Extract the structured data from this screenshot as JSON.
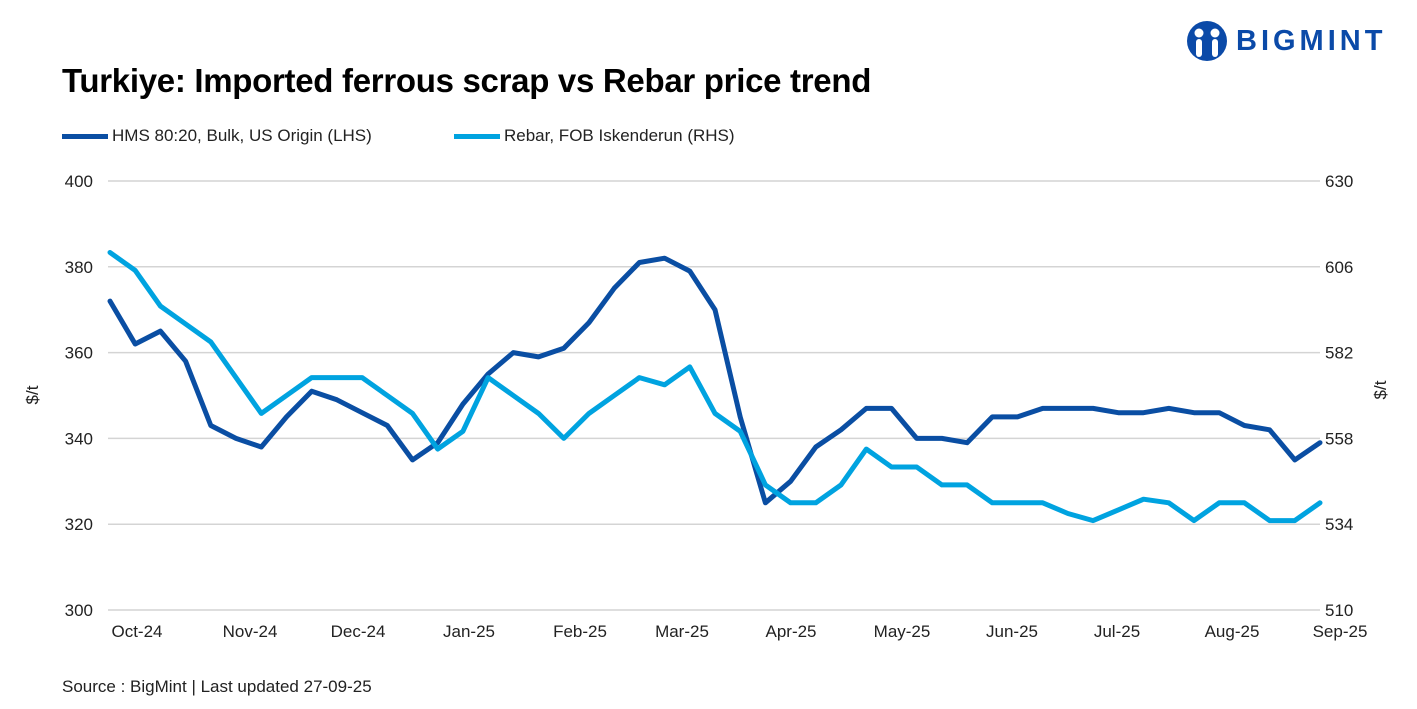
{
  "brand": {
    "logo_text": "BIGMINT",
    "color": "#0b4aa8"
  },
  "chart_data": {
    "type": "line",
    "title": "Turkiye: Imported ferrous scrap vs Rebar price trend",
    "source": "Source : BigMint | Last updated 27-09-25",
    "xlabel": "",
    "x_ticks": [
      "Oct-24",
      "Nov-24",
      "Dec-24",
      "Jan-25",
      "Feb-25",
      "Mar-25",
      "Apr-25",
      "May-25",
      "Jun-25",
      "Jul-25",
      "Aug-25",
      "Sep-25"
    ],
    "y_left": {
      "label": "$/t",
      "lim": [
        300,
        400
      ],
      "ticks": [
        "300",
        "320",
        "340",
        "360",
        "380",
        "400"
      ]
    },
    "y_right": {
      "label": "$/t",
      "lim": [
        510,
        630
      ],
      "ticks": [
        "510",
        "534",
        "558",
        "582",
        "606",
        "630"
      ]
    },
    "grid": true,
    "legend_placement": "top-left",
    "series": [
      {
        "name": "HMS 80:20, Bulk, US Origin (LHS)",
        "axis": "left",
        "color": "#0a4ea3",
        "values": [
          372,
          362,
          365,
          358,
          343,
          340,
          338,
          345,
          351,
          349,
          346,
          343,
          335,
          339,
          348,
          355,
          360,
          359,
          361,
          367,
          375,
          381,
          382,
          379,
          370,
          345,
          325,
          330,
          338,
          342,
          347,
          347,
          340,
          340,
          339,
          345,
          345,
          347,
          347,
          347,
          346,
          346,
          347,
          346,
          346,
          343,
          342,
          335,
          339
        ]
      },
      {
        "name": "Rebar, FOB Iskenderun (RHS)",
        "axis": "right",
        "color": "#00a3e0",
        "values": [
          610,
          605,
          595,
          590,
          585,
          575,
          565,
          570,
          575,
          575,
          575,
          570,
          565,
          555,
          560,
          575,
          570,
          565,
          558,
          565,
          570,
          575,
          573,
          578,
          565,
          560,
          545,
          540,
          540,
          545,
          555,
          550,
          550,
          545,
          545,
          540,
          540,
          540,
          537,
          535,
          538,
          541,
          540,
          535,
          540,
          540,
          535,
          535,
          540
        ]
      }
    ]
  }
}
